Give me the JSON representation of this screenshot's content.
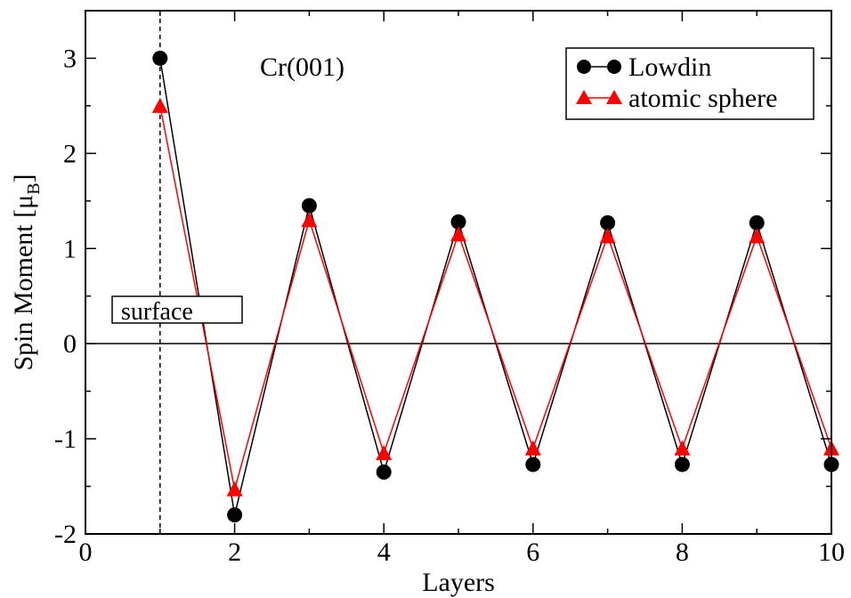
{
  "chart_data": {
    "type": "line",
    "title": "Cr(001)",
    "xlabel": "Layers",
    "ylabel": "Spin Moment [μ",
    "ylabel_sub": "B",
    "ylabel_close": "]",
    "xlim": [
      0,
      10
    ],
    "ylim": [
      -2,
      3.5
    ],
    "xticks": [
      0,
      2,
      4,
      6,
      8,
      10
    ],
    "yticks": [
      -2,
      -1,
      0,
      1,
      2,
      3
    ],
    "legend_position": "top-right",
    "annotation": {
      "text": "surface",
      "x": 1
    },
    "series": [
      {
        "name": "Lowdin",
        "color": "#000000",
        "marker": "circle",
        "x": [
          1,
          2,
          3,
          4,
          5,
          6,
          7,
          8,
          9,
          10
        ],
        "y": [
          3.0,
          -1.8,
          1.45,
          -1.35,
          1.28,
          -1.27,
          1.27,
          -1.27,
          1.27,
          -1.27
        ]
      },
      {
        "name": "atomic sphere",
        "color": "#ff0000",
        "marker": "triangle",
        "x": [
          1,
          2,
          3,
          4,
          5,
          6,
          7,
          8,
          9,
          10
        ],
        "y": [
          2.5,
          -1.53,
          1.3,
          -1.15,
          1.15,
          -1.1,
          1.13,
          -1.1,
          1.13,
          -1.1
        ]
      }
    ]
  }
}
